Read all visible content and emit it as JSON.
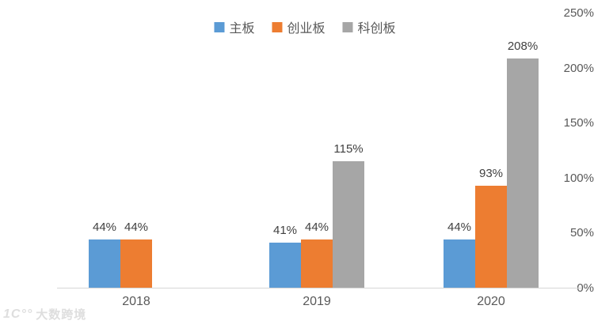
{
  "chart_data": {
    "type": "bar",
    "title": "",
    "xlabel": "",
    "ylabel": "",
    "categories": [
      "2018",
      "2019",
      "2020"
    ],
    "series": [
      {
        "name": "主板",
        "key": "main-board",
        "color": "#5B9BD5",
        "values": [
          44,
          41,
          44
        ]
      },
      {
        "name": "创业板",
        "key": "chinext",
        "color": "#ED7D31",
        "values": [
          44,
          44,
          93
        ]
      },
      {
        "name": "科创板",
        "key": "star-market",
        "color": "#A6A6A6",
        "values": [
          null,
          115,
          208
        ]
      }
    ],
    "value_suffix": "%",
    "data_labels": [
      [
        "44%",
        "44%",
        null
      ],
      [
        "41%",
        "44%",
        "115%"
      ],
      [
        "44%",
        "93%",
        "208%"
      ]
    ],
    "ylim": [
      0,
      250
    ],
    "yticks": [
      "0%",
      "50%",
      "100%",
      "150%",
      "200%",
      "250%"
    ],
    "ytick_values": [
      0,
      50,
      100,
      150,
      200,
      250
    ],
    "grid": false,
    "legend_position": "top-center"
  },
  "watermark": {
    "logo": "1C°°",
    "text": "大数跨境"
  }
}
